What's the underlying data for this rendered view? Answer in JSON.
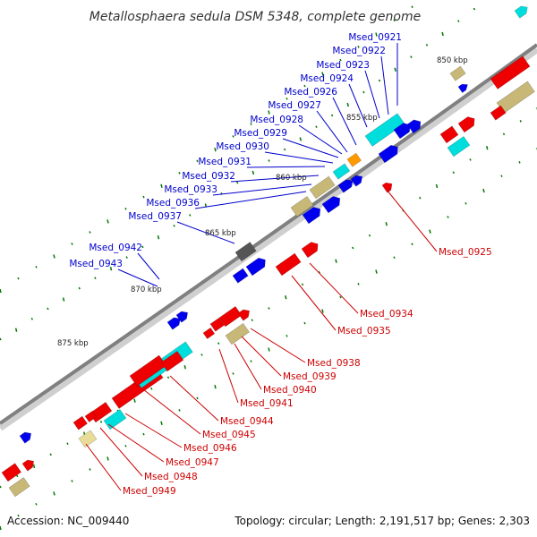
{
  "title": "Metallosphaera sedula DSM 5348, complete genome",
  "footer": {
    "accession": "Accession: NC_009440",
    "summary": "Topology: circular; Length: 2,191,517 bp; Genes: 2,303"
  },
  "colors": {
    "backbone": "#808080",
    "label_blue": "#0000cc",
    "label_red": "#cc0000",
    "gene_red": "#ee0000",
    "gene_blue": "#0000ee",
    "gene_cyan": "#00dddd",
    "gene_olive": "#c8b878",
    "gene_pale": "#e8dc98",
    "gene_orange": "#ff9900",
    "gene_gray": "#555555",
    "dot_green": "#007700"
  },
  "ticks": [
    "850 kbp",
    "855 kbp",
    "860 kbp",
    "865 kbp",
    "870 kbp",
    "875 kbp"
  ],
  "labels_blue": [
    "Msed_0921",
    "Msed_0922",
    "Msed_0923",
    "Msed_0924",
    "Msed_0926",
    "Msed_0927",
    "Msed_0928",
    "Msed_0929",
    "Msed_0930",
    "Msed_0931",
    "Msed_0932",
    "Msed_0933",
    "Msed_0936",
    "Msed_0937",
    "Msed_0942",
    "Msed_0943"
  ],
  "labels_red": [
    "Msed_0925",
    "Msed_0934",
    "Msed_0935",
    "Msed_0938",
    "Msed_0939",
    "Msed_0940",
    "Msed_0941",
    "Msed_0944",
    "Msed_0945",
    "Msed_0946",
    "Msed_0947",
    "Msed_0948",
    "Msed_0949"
  ]
}
